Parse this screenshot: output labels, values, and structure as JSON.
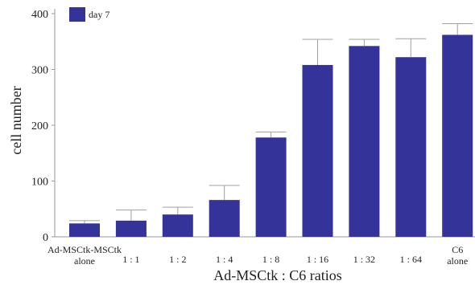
{
  "chart_data": {
    "type": "bar",
    "title": "",
    "xlabel": "Ad-MSCtk : C6 ratios",
    "ylabel": "cell number",
    "legend": {
      "entries": [
        "day 7"
      ],
      "placement": "top-left"
    },
    "colors": {
      "bar": "#333399",
      "axis": "#999999",
      "error_bar": "#a0a0a0"
    },
    "ylim": [
      0,
      400
    ],
    "yticks": [
      "0",
      "100",
      "200",
      "300",
      "400"
    ],
    "categories": [
      [
        "Ad-MSCtk-MSCtk",
        "alone"
      ],
      [
        "1 :  1"
      ],
      [
        "1 :  2"
      ],
      [
        "1 :  4"
      ],
      [
        "1 :  8"
      ],
      [
        "1 : 16"
      ],
      [
        "1 : 32"
      ],
      [
        "1 : 64"
      ],
      [
        "C6",
        "alone"
      ]
    ],
    "series": [
      {
        "name": "day 7",
        "values": [
          24,
          29,
          40,
          66,
          178,
          308,
          342,
          322,
          362
        ],
        "error": [
          5,
          19,
          13,
          26,
          10,
          46,
          12,
          33,
          20
        ]
      }
    ]
  }
}
